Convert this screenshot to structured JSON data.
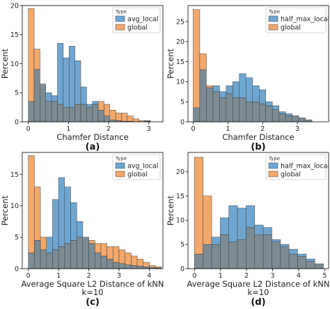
{
  "colors": {
    "blue": "#6fa6d1",
    "orange": "#f3a86c",
    "overlap": "#7d8c94",
    "edge": "#3c3c3c"
  },
  "chart_data": [
    {
      "id": "a",
      "type": "bar",
      "caption": "(a)",
      "xlabel": "Chamfer Distance",
      "xlabel2": "",
      "ylabel": "Percent",
      "xlim": [
        -0.15,
        3.35
      ],
      "ylim": [
        0,
        20
      ],
      "xticks": [
        0,
        1,
        2,
        3
      ],
      "yticks": [
        0,
        5,
        10,
        15,
        20
      ],
      "legend_title": "Type",
      "legend_position": "top-right",
      "series": [
        {
          "name": "avg_local",
          "color": "blue",
          "x0": 0.0,
          "bin_width": 0.145,
          "values": [
            3.5,
            9.0,
            6.5,
            5.0,
            4.5,
            13.5,
            11.0,
            13.0,
            10.5,
            6.0,
            3.0,
            3.5,
            2.0,
            1.0,
            0.3,
            0.2,
            0.1,
            0.1,
            0,
            0,
            0.2
          ]
        },
        {
          "name": "global",
          "color": "orange",
          "x0": 0.0,
          "bin_width": 0.145,
          "values": [
            19.5,
            12.5,
            6.5,
            3.5,
            3.5,
            3.0,
            2.5,
            2.5,
            3.0,
            3.0,
            2.5,
            3.0,
            3.5,
            3.0,
            2.0,
            1.5,
            1.5,
            1.0,
            0.5,
            0.2,
            0.1
          ]
        }
      ]
    },
    {
      "id": "b",
      "type": "bar",
      "caption": "(b)",
      "xlabel": "Chamfer Distance",
      "xlabel2": "",
      "ylabel": "Percent",
      "xlim": [
        -0.15,
        3.9
      ],
      "ylim": [
        0,
        29
      ],
      "xticks": [
        0,
        1,
        2,
        3
      ],
      "yticks": [
        0,
        5,
        10,
        15,
        20,
        25
      ],
      "legend_title": "Type",
      "legend_position": "top-right",
      "series": [
        {
          "name": "half_max_local",
          "color": "blue",
          "x0": 0.0,
          "bin_width": 0.19,
          "values": [
            3.5,
            13.0,
            8.5,
            9.0,
            7.5,
            9.0,
            10.0,
            12.0,
            11.0,
            9.0,
            8.0,
            5.0,
            4.0,
            2.5,
            2.0,
            1.5,
            1.0,
            0.5
          ]
        },
        {
          "name": "global",
          "color": "orange",
          "x0": 0.0,
          "bin_width": 0.19,
          "values": [
            28.0,
            17.0,
            9.0,
            7.5,
            6.0,
            7.0,
            6.0,
            6.0,
            5.0,
            5.0,
            4.5,
            4.0,
            3.0,
            2.0,
            1.5,
            1.5,
            1.0,
            0.5
          ]
        }
      ]
    },
    {
      "id": "c",
      "type": "bar",
      "caption": "(c)",
      "xlabel": "Average Square L2 Distance of kNN",
      "xlabel2": "k=10",
      "ylabel": "Percent",
      "xlim": [
        -0.2,
        4.45
      ],
      "ylim": [
        0,
        18.5
      ],
      "xticks": [
        0,
        1,
        2,
        3,
        4
      ],
      "yticks": [
        0,
        5,
        10,
        15
      ],
      "legend_title": "Type",
      "legend_position": "top-right",
      "series": [
        {
          "name": "avg_local",
          "color": "blue",
          "x0": 0.0,
          "bin_width": 0.2,
          "values": [
            2.5,
            4.5,
            3.0,
            5.0,
            11.0,
            14.5,
            13.0,
            10.5,
            7.5,
            5.0,
            4.0,
            2.5,
            2.0,
            1.5,
            1.0,
            0.8,
            0.6,
            0.5,
            0.4,
            0.3,
            0.2,
            0.1
          ]
        },
        {
          "name": "global",
          "color": "orange",
          "x0": 0.0,
          "bin_width": 0.2,
          "values": [
            18.0,
            13.0,
            5.0,
            2.5,
            3.0,
            3.5,
            4.0,
            4.5,
            5.0,
            5.0,
            4.5,
            4.0,
            4.0,
            3.5,
            3.5,
            3.0,
            2.5,
            2.0,
            1.5,
            1.0,
            0.5,
            0.3
          ]
        }
      ]
    },
    {
      "id": "d",
      "type": "bar",
      "caption": "(d)",
      "xlabel": "Average Square L2 Distance of kNN",
      "xlabel2": "k=10",
      "ylabel": "Percent",
      "xlim": [
        -0.25,
        5.15
      ],
      "ylim": [
        0,
        24
      ],
      "xticks": [
        0,
        1,
        2,
        3,
        4,
        5
      ],
      "yticks": [
        0,
        5,
        10,
        15,
        20
      ],
      "legend_title": "Type",
      "legend_position": "top-right",
      "series": [
        {
          "name": "half_max_local",
          "color": "blue",
          "x0": 0.0,
          "bin_width": 0.33,
          "values": [
            3.0,
            5.0,
            6.5,
            10.5,
            13.0,
            12.5,
            13.0,
            9.0,
            8.5,
            6.0,
            5.0,
            4.0,
            3.0,
            2.0,
            1.0
          ]
        },
        {
          "name": "global",
          "color": "orange",
          "x0": 0.0,
          "bin_width": 0.33,
          "values": [
            23.0,
            15.0,
            5.0,
            7.0,
            5.5,
            6.0,
            8.5,
            7.0,
            7.0,
            5.5,
            4.5,
            3.0,
            2.5,
            1.5,
            1.0
          ]
        }
      ]
    }
  ]
}
